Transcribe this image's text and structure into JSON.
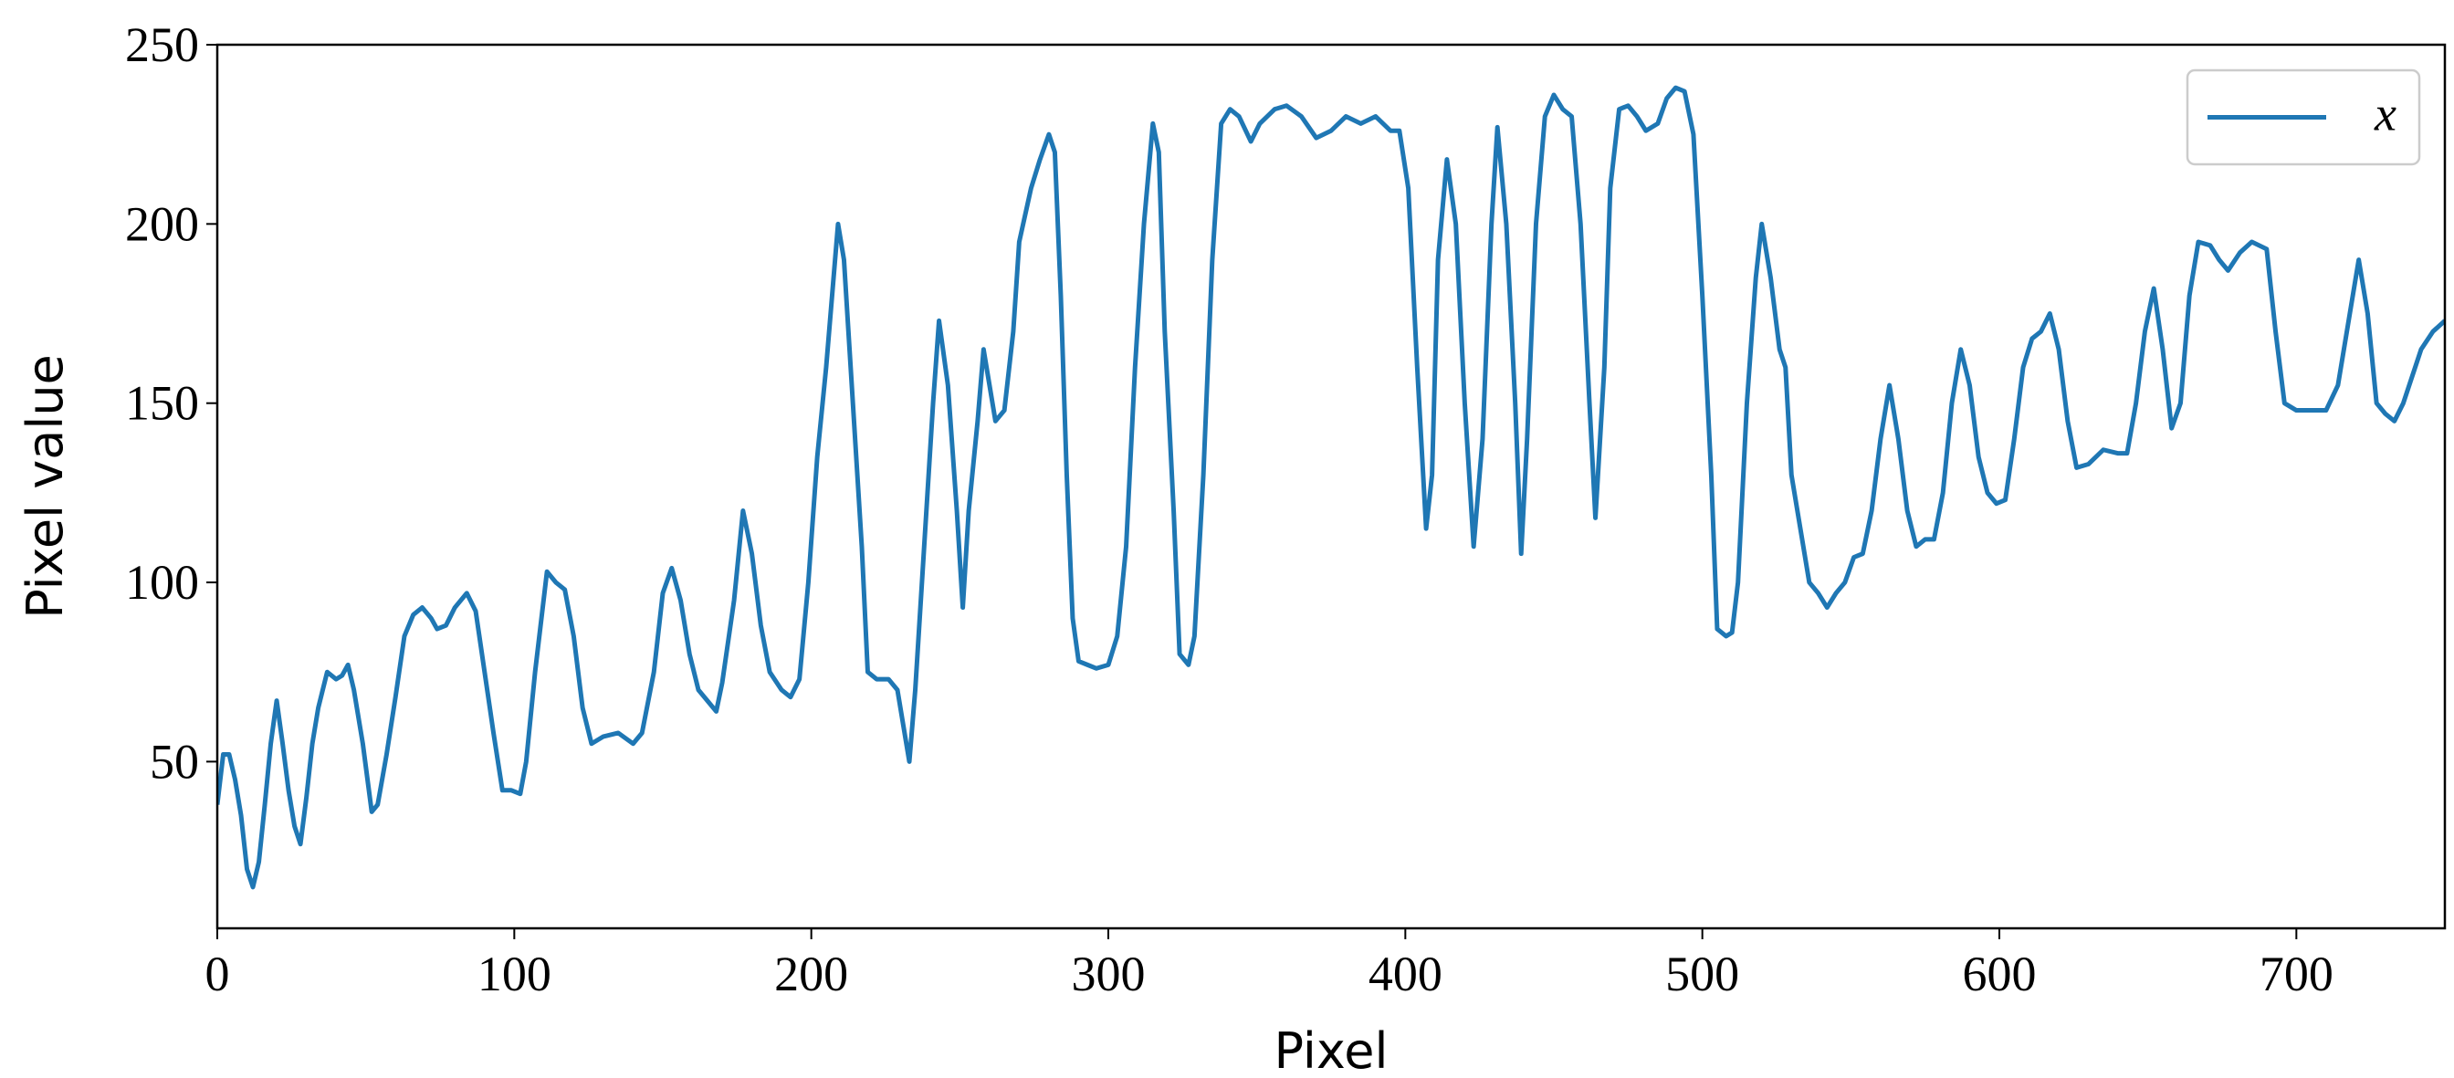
{
  "chart_data": {
    "type": "line",
    "x_label": "Pixel",
    "y_label": "Pixel value",
    "xlim": [
      0,
      750
    ],
    "ylim": [
      3.5,
      250
    ],
    "xticks": [
      0,
      100,
      200,
      300,
      400,
      500,
      600,
      700
    ],
    "yticks": [
      50,
      100,
      150,
      200,
      250
    ],
    "legend": "upper right",
    "series": [
      {
        "name": "x",
        "color": "#1f77b4",
        "x": [
          0,
          2,
          4,
          6,
          8,
          10,
          12,
          14,
          16,
          18,
          20,
          22,
          24,
          26,
          28,
          30,
          32,
          34,
          37,
          40,
          42,
          44,
          46,
          49,
          52,
          54,
          57,
          60,
          63,
          66,
          69,
          72,
          74,
          77,
          80,
          84,
          87,
          90,
          93,
          96,
          99,
          102,
          104,
          107,
          111,
          114,
          117,
          120,
          123,
          126,
          130,
          135,
          140,
          143,
          147,
          150,
          153,
          156,
          159,
          162,
          165,
          168,
          170,
          174,
          177,
          180,
          183,
          186,
          190,
          193,
          196,
          199,
          202,
          205,
          208,
          209,
          211,
          214,
          217,
          219,
          222,
          226,
          229,
          231,
          233,
          235,
          238,
          241,
          243,
          246,
          249,
          251,
          253,
          256,
          258,
          260,
          262,
          265,
          268,
          270,
          274,
          277,
          280,
          282,
          284,
          286,
          288,
          290,
          293,
          296,
          300,
          303,
          306,
          309,
          312,
          315,
          317,
          319,
          322,
          324,
          327,
          329,
          332,
          335,
          338,
          341,
          344,
          348,
          351,
          356,
          360,
          365,
          370,
          375,
          380,
          385,
          390,
          395,
          398,
          401,
          404,
          407,
          409,
          411,
          414,
          417,
          420,
          423,
          426,
          429,
          431,
          434,
          437,
          439,
          441,
          444,
          447,
          450,
          453,
          456,
          459,
          462,
          464,
          467,
          469,
          472,
          475,
          478,
          481,
          485,
          488,
          491,
          494,
          497,
          500,
          503,
          505,
          508,
          510,
          512,
          515,
          518,
          520,
          523,
          526,
          528,
          530,
          533,
          536,
          539,
          542,
          545,
          548,
          551,
          554,
          557,
          560,
          563,
          566,
          569,
          572,
          575,
          578,
          581,
          584,
          587,
          590,
          593,
          596,
          599,
          602,
          605,
          608,
          611,
          614,
          617,
          620,
          623,
          626,
          630,
          635,
          640,
          643,
          646,
          649,
          652,
          655,
          658,
          661,
          664,
          667,
          671,
          674,
          677,
          681,
          685,
          690,
          693,
          696,
          700,
          705,
          710,
          714,
          718,
          721,
          724,
          727,
          730,
          733,
          736,
          740,
          742,
          746,
          750
        ],
        "values": [
          38,
          52,
          52,
          45,
          35,
          20,
          15,
          22,
          38,
          55,
          67,
          55,
          42,
          32,
          27,
          40,
          55,
          65,
          75,
          73,
          74,
          77,
          70,
          55,
          36,
          38,
          52,
          68,
          85,
          91,
          93,
          90,
          87,
          88,
          93,
          97,
          92,
          75,
          58,
          42,
          42,
          41,
          50,
          75,
          103,
          100,
          98,
          85,
          65,
          55,
          57,
          58,
          55,
          58,
          75,
          97,
          104,
          95,
          80,
          70,
          67,
          64,
          72,
          95,
          120,
          108,
          88,
          75,
          70,
          68,
          73,
          100,
          135,
          160,
          190,
          200,
          190,
          150,
          110,
          75,
          73,
          73,
          70,
          60,
          50,
          70,
          110,
          150,
          173,
          155,
          120,
          93,
          120,
          145,
          165,
          155,
          145,
          148,
          170,
          195,
          210,
          218,
          225,
          220,
          180,
          130,
          90,
          78,
          77,
          76,
          77,
          85,
          110,
          160,
          200,
          228,
          220,
          170,
          120,
          80,
          77,
          85,
          130,
          190,
          228,
          232,
          230,
          223,
          228,
          232,
          233,
          230,
          224,
          226,
          230,
          228,
          230,
          226,
          226,
          210,
          160,
          115,
          130,
          190,
          218,
          200,
          150,
          110,
          140,
          200,
          227,
          200,
          150,
          108,
          140,
          200,
          230,
          236,
          232,
          230,
          200,
          150,
          118,
          160,
          210,
          232,
          233,
          230,
          226,
          228,
          235,
          238,
          237,
          225,
          180,
          130,
          87,
          85,
          86,
          100,
          150,
          185,
          200,
          185,
          165,
          160,
          130,
          115,
          100,
          97,
          93,
          97,
          100,
          107,
          108,
          120,
          140,
          155,
          140,
          120,
          110,
          112,
          112,
          125,
          150,
          165,
          155,
          135,
          125,
          122,
          123,
          140,
          160,
          168,
          170,
          175,
          165,
          145,
          132,
          133,
          137,
          136,
          136,
          150,
          170,
          182,
          165,
          143,
          150,
          180,
          195,
          194,
          190,
          187,
          192,
          195,
          193,
          170,
          150,
          148,
          148,
          148,
          155,
          175,
          190,
          175,
          150,
          147,
          145,
          150,
          160,
          165,
          170,
          173
        ]
      }
    ]
  }
}
